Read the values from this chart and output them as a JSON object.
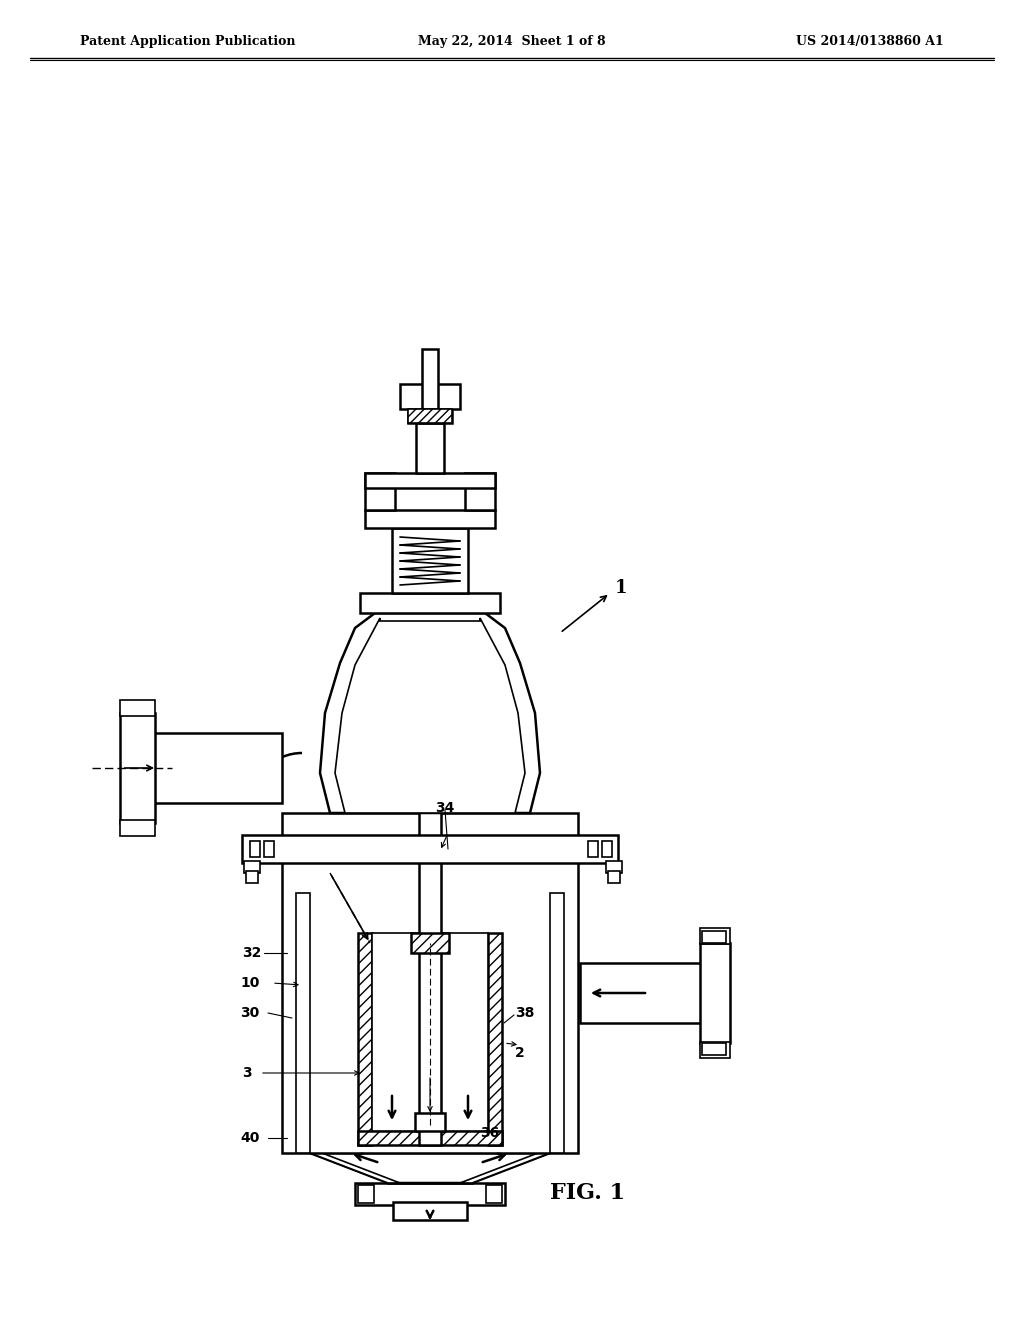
{
  "title_left": "Patent Application Publication",
  "title_mid": "May 22, 2014  Sheet 1 of 8",
  "title_right": "US 2014/0138860 A1",
  "fig_label": "FIG. 1",
  "ref_numbers": [
    "1",
    "2",
    "3",
    "10",
    "30",
    "32",
    "34",
    "36",
    "38",
    "40"
  ],
  "bg_color": "#ffffff",
  "line_color": "#000000",
  "line_width": 1.2,
  "hatch_color": "#000000"
}
